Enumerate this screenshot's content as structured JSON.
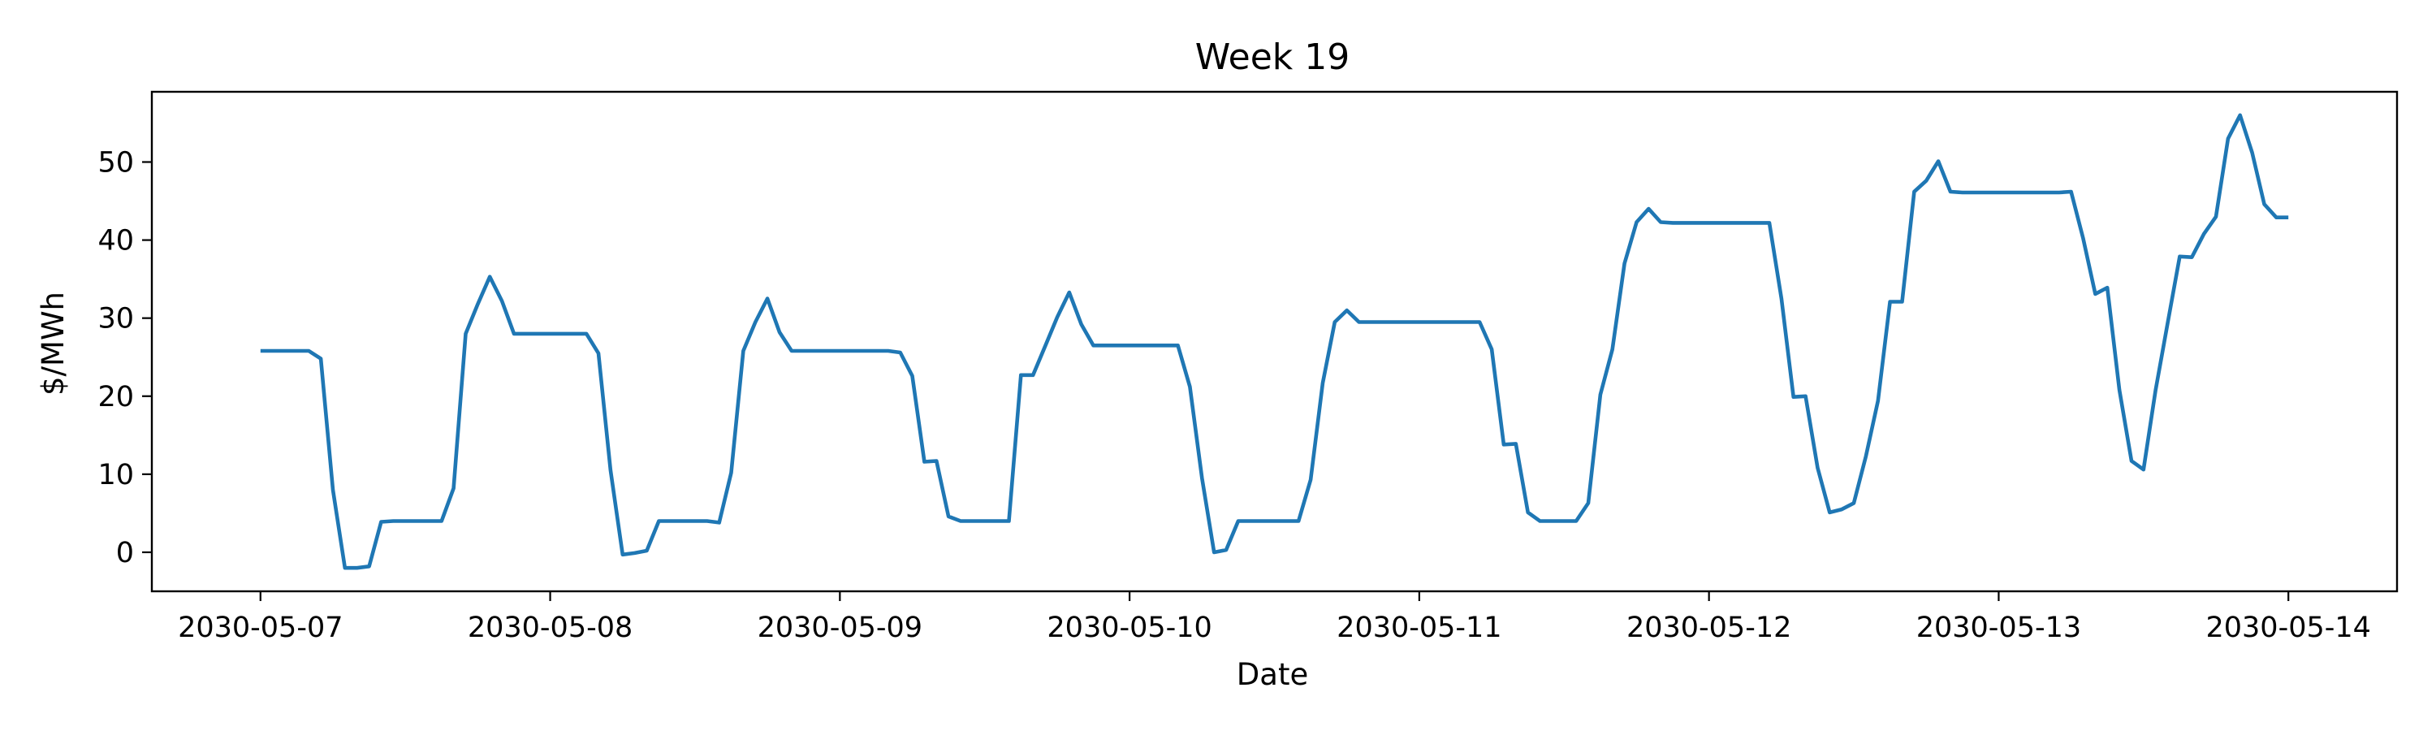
{
  "chart_data": {
    "type": "line",
    "title": "Week 19",
    "xlabel": "Date",
    "ylabel": "$/MWh",
    "x_tick_labels": [
      "2030-05-07",
      "2030-05-08",
      "2030-05-09",
      "2030-05-10",
      "2030-05-11",
      "2030-05-12",
      "2030-05-13",
      "2030-05-14"
    ],
    "y_ticks": [
      0,
      10,
      20,
      30,
      40,
      50
    ],
    "xlim": [
      "2030-05-06 15:00",
      "2030-05-14 09:00"
    ],
    "ylim": [
      -5,
      59
    ],
    "grid": false,
    "color": "#1f77b4",
    "series": [
      {
        "x": [
          "2030-05-07 00:00",
          "2030-05-07 01:00",
          "2030-05-07 02:00",
          "2030-05-07 03:00",
          "2030-05-07 04:00",
          "2030-05-07 05:00",
          "2030-05-07 06:00",
          "2030-05-07 07:00",
          "2030-05-07 08:00",
          "2030-05-07 09:00",
          "2030-05-07 10:00",
          "2030-05-07 11:00",
          "2030-05-07 12:00",
          "2030-05-07 13:00",
          "2030-05-07 14:00",
          "2030-05-07 15:00",
          "2030-05-07 16:00",
          "2030-05-07 17:00",
          "2030-05-07 18:00",
          "2030-05-07 19:00",
          "2030-05-07 20:00",
          "2030-05-07 21:00",
          "2030-05-07 22:00",
          "2030-05-07 23:00",
          "2030-05-08 00:00",
          "2030-05-08 01:00",
          "2030-05-08 02:00",
          "2030-05-08 03:00",
          "2030-05-08 04:00",
          "2030-05-08 05:00",
          "2030-05-08 06:00",
          "2030-05-08 07:00",
          "2030-05-08 08:00",
          "2030-05-08 09:00",
          "2030-05-08 10:00",
          "2030-05-08 11:00",
          "2030-05-08 12:00",
          "2030-05-08 13:00",
          "2030-05-08 14:00",
          "2030-05-08 15:00",
          "2030-05-08 16:00",
          "2030-05-08 17:00",
          "2030-05-08 18:00",
          "2030-05-08 19:00",
          "2030-05-08 20:00",
          "2030-05-08 21:00",
          "2030-05-08 22:00",
          "2030-05-08 23:00",
          "2030-05-09 00:00",
          "2030-05-09 01:00",
          "2030-05-09 02:00",
          "2030-05-09 03:00",
          "2030-05-09 04:00",
          "2030-05-09 05:00",
          "2030-05-09 06:00",
          "2030-05-09 07:00",
          "2030-05-09 08:00",
          "2030-05-09 09:00",
          "2030-05-09 10:00",
          "2030-05-09 11:00",
          "2030-05-09 12:00",
          "2030-05-09 13:00",
          "2030-05-09 14:00",
          "2030-05-09 15:00",
          "2030-05-09 16:00",
          "2030-05-09 17:00",
          "2030-05-09 18:00",
          "2030-05-09 19:00",
          "2030-05-09 20:00",
          "2030-05-09 21:00",
          "2030-05-09 22:00",
          "2030-05-09 23:00",
          "2030-05-10 00:00",
          "2030-05-10 01:00",
          "2030-05-10 02:00",
          "2030-05-10 03:00",
          "2030-05-10 04:00",
          "2030-05-10 05:00",
          "2030-05-10 06:00",
          "2030-05-10 07:00",
          "2030-05-10 08:00",
          "2030-05-10 09:00",
          "2030-05-10 10:00",
          "2030-05-10 11:00",
          "2030-05-10 12:00",
          "2030-05-10 13:00",
          "2030-05-10 14:00",
          "2030-05-10 15:00",
          "2030-05-10 16:00",
          "2030-05-10 17:00",
          "2030-05-10 18:00",
          "2030-05-10 19:00",
          "2030-05-10 20:00",
          "2030-05-10 21:00",
          "2030-05-10 22:00",
          "2030-05-10 23:00",
          "2030-05-11 00:00",
          "2030-05-11 01:00",
          "2030-05-11 02:00",
          "2030-05-11 03:00",
          "2030-05-11 04:00",
          "2030-05-11 05:00",
          "2030-05-11 06:00",
          "2030-05-11 07:00",
          "2030-05-11 08:00",
          "2030-05-11 09:00",
          "2030-05-11 10:00",
          "2030-05-11 11:00",
          "2030-05-11 12:00",
          "2030-05-11 13:00",
          "2030-05-11 14:00",
          "2030-05-11 15:00",
          "2030-05-11 16:00",
          "2030-05-11 17:00",
          "2030-05-11 18:00",
          "2030-05-11 19:00",
          "2030-05-11 20:00",
          "2030-05-11 21:00",
          "2030-05-11 22:00",
          "2030-05-11 23:00",
          "2030-05-12 00:00",
          "2030-05-12 01:00",
          "2030-05-12 02:00",
          "2030-05-12 03:00",
          "2030-05-12 04:00",
          "2030-05-12 05:00",
          "2030-05-12 06:00",
          "2030-05-12 07:00",
          "2030-05-12 08:00",
          "2030-05-12 09:00",
          "2030-05-12 10:00",
          "2030-05-12 11:00",
          "2030-05-12 12:00",
          "2030-05-12 13:00",
          "2030-05-12 14:00",
          "2030-05-12 15:00",
          "2030-05-12 16:00",
          "2030-05-12 17:00",
          "2030-05-12 18:00",
          "2030-05-12 19:00",
          "2030-05-12 20:00",
          "2030-05-12 21:00",
          "2030-05-12 22:00",
          "2030-05-12 23:00",
          "2030-05-13 00:00",
          "2030-05-13 01:00",
          "2030-05-13 02:00",
          "2030-05-13 03:00",
          "2030-05-13 04:00",
          "2030-05-13 05:00",
          "2030-05-13 06:00",
          "2030-05-13 07:00",
          "2030-05-13 08:00",
          "2030-05-13 09:00",
          "2030-05-13 10:00",
          "2030-05-13 11:00",
          "2030-05-13 12:00",
          "2030-05-13 13:00",
          "2030-05-13 14:00",
          "2030-05-13 15:00",
          "2030-05-13 16:00",
          "2030-05-13 17:00",
          "2030-05-13 18:00",
          "2030-05-13 19:00",
          "2030-05-13 20:00",
          "2030-05-13 21:00",
          "2030-05-13 22:00",
          "2030-05-13 23:00",
          "2030-05-14 00:00"
        ],
        "y": [
          25.8,
          25.8,
          25.8,
          25.8,
          25.8,
          24.8,
          8,
          -2,
          -2,
          -1.8,
          3.9,
          4,
          4,
          4,
          4,
          4,
          8.2,
          28,
          31.8,
          35.3,
          32.2,
          28,
          28,
          28,
          28,
          28,
          28,
          28,
          25.5,
          10.5,
          -0.3,
          -0.1,
          0.2,
          4,
          4,
          4,
          4,
          4,
          3.8,
          10.2,
          25.8,
          29.5,
          32.5,
          28.2,
          25.8,
          25.8,
          25.8,
          25.8,
          25.8,
          25.8,
          25.8,
          25.8,
          25.8,
          25.6,
          22.6,
          11.6,
          11.7,
          4.6,
          4,
          4,
          4,
          4,
          4,
          22.7,
          22.7,
          26.4,
          30.1,
          33.3,
          29.2,
          26.5,
          26.5,
          26.5,
          26.5,
          26.5,
          26.5,
          26.5,
          26.5,
          21.2,
          9.5,
          0,
          0.3,
          4,
          4,
          4,
          4,
          4,
          4,
          9.3,
          21.7,
          29.5,
          31,
          29.5,
          29.5,
          29.5,
          29.5,
          29.5,
          29.5,
          29.5,
          29.5,
          29.5,
          29.5,
          29.5,
          26,
          13.8,
          13.9,
          5.1,
          4,
          4,
          4,
          4,
          6.3,
          20.2,
          26,
          37,
          42.3,
          44,
          42.3,
          42.2,
          42.2,
          42.2,
          42.2,
          42.2,
          42.2,
          42.2,
          42.2,
          42.2,
          32.5,
          19.9,
          20,
          10.8,
          5.1,
          5.5,
          6.3,
          12.3,
          19.4,
          32.1,
          32.1,
          46.2,
          47.6,
          50.1,
          46.2,
          46.1,
          46.1,
          46.1,
          46.1,
          46.1,
          46.1,
          46.1,
          46.1,
          46.1,
          46.2,
          40.2,
          33.1,
          33.9,
          20.8,
          11.7,
          10.6,
          20.8,
          29.4,
          37.9,
          37.8,
          40.8,
          43,
          53,
          56,
          51.2,
          44.6,
          42.9,
          42.9
        ]
      }
    ]
  }
}
